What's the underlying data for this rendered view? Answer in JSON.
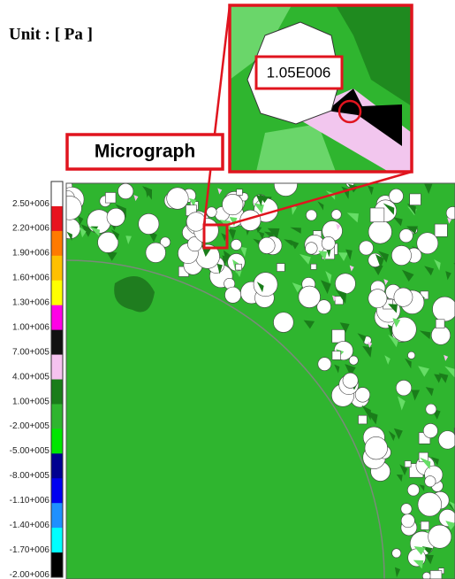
{
  "unit_label": "Unit : [ Pa ]",
  "legend": {
    "labels": [
      "2.50+006",
      "2.20+006",
      "1.90+006",
      "1.60+006",
      "1.30+006",
      "1.00+006",
      "7.00+005",
      "4.00+005",
      "1.00+005",
      "-2.00+005",
      "-5.00+005",
      "-8.00+005",
      "-1.10+006",
      "-1.40+006",
      "-1.70+006",
      "-2.00+006"
    ]
  },
  "inset": {
    "callout": "1.05E006",
    "label": "Micrograph"
  }
}
